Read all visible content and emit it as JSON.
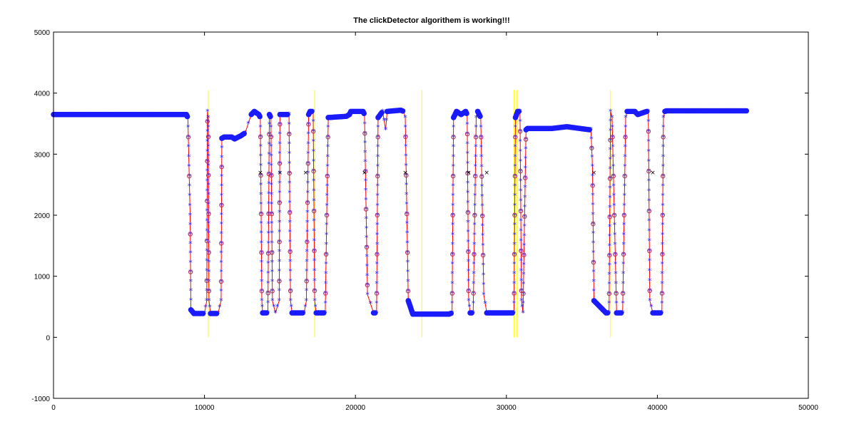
{
  "chart_data": {
    "type": "line",
    "title": "The clickDetector algorithem is working!!!",
    "xlabel": "",
    "ylabel": "",
    "xlim": [
      0,
      50000
    ],
    "ylim": [
      -1000,
      5000
    ],
    "xticks": [
      0,
      10000,
      20000,
      30000,
      40000,
      50000
    ],
    "xtick_labels": [
      "0",
      "10000",
      "20000",
      "30000",
      "40000",
      "50000"
    ],
    "yticks": [
      -1000,
      0,
      1000,
      2000,
      3000,
      4000,
      5000
    ],
    "ytick_labels": [
      "-1000",
      "0",
      "1000",
      "2000",
      "3000",
      "4000",
      "5000"
    ],
    "grid": false,
    "legend": "none",
    "colors": {
      "signal": "#1a1aff",
      "signal_line": "#ff0000",
      "transition_marker": "#b03a6a",
      "click_marker": "#000000",
      "click_line": "#ffff00",
      "axes": "#000000"
    },
    "series": [
      {
        "style": "blue markers with red line",
        "x": [
          0,
          8800,
          8900,
          9050,
          9100,
          9300,
          10000,
          10150,
          10200,
          10250,
          10300,
          10400,
          10600,
          10900,
          11100,
          11150,
          11300,
          11800,
          12000,
          12400,
          12700,
          13100,
          13300,
          13600,
          13700,
          13800,
          13850,
          14200,
          14300,
          14400,
          14500,
          14700,
          14950,
          15000,
          15100,
          15600,
          15700,
          15800,
          16000,
          16600,
          16750,
          16900,
          17000,
          17200,
          17300,
          17400,
          17800,
          18000,
          18200,
          19400,
          19600,
          19700,
          20000,
          20500,
          20600,
          20800,
          21200,
          21400,
          21500,
          21800,
          22000,
          22100,
          23000,
          23200,
          23300,
          23500,
          23800,
          24300,
          24400,
          24500,
          26200,
          26400,
          26500,
          26700,
          27000,
          27300,
          27400,
          27500,
          27600,
          27800,
          28000,
          28100,
          28300,
          28500,
          28700,
          28800,
          29000,
          30400,
          30500,
          30600,
          30750,
          30900,
          31000,
          31100,
          31300,
          31400,
          33000,
          34000,
          35500,
          35600,
          35700,
          35800,
          36600,
          36800,
          36900,
          37000,
          37300,
          37700,
          37900,
          38000,
          38100,
          38500,
          38700,
          39300,
          39400,
          39500,
          39700,
          40300,
          40400,
          40500,
          40600,
          41000,
          45900
        ],
        "y": [
          3650,
          3650,
          3600,
          2000,
          450,
          390,
          390,
          600,
          3700,
          3600,
          600,
          390,
          390,
          390,
          600,
          3260,
          3280,
          3280,
          3250,
          3300,
          3350,
          3650,
          3700,
          3650,
          3600,
          600,
          400,
          400,
          3650,
          3600,
          600,
          400,
          600,
          3650,
          3650,
          3650,
          600,
          400,
          400,
          400,
          600,
          3650,
          3700,
          3700,
          600,
          400,
          400,
          400,
          3600,
          3620,
          3650,
          3700,
          3700,
          3700,
          3650,
          700,
          400,
          400,
          3600,
          3700,
          3400,
          3700,
          3720,
          3700,
          3600,
          600,
          380,
          380,
          380,
          380,
          380,
          400,
          3600,
          3700,
          3650,
          3700,
          3650,
          600,
          400,
          400,
          3600,
          3700,
          3600,
          700,
          400,
          400,
          400,
          400,
          400,
          3600,
          3700,
          3700,
          600,
          400,
          3400,
          3420,
          3420,
          3450,
          3400,
          3400,
          2800,
          600,
          400,
          400,
          3700,
          3600,
          400,
          400,
          3600,
          3700,
          3700,
          3700,
          3650,
          3700,
          3700,
          600,
          400,
          400,
          3600,
          3700,
          3710,
          3710,
          3710
        ]
      },
      {
        "style": "click markers",
        "x": [
          13700,
          15000,
          16700,
          20600,
          23300,
          27500,
          28700,
          35800,
          39700
        ],
        "y": [
          2700,
          2700,
          2700,
          2700,
          2700,
          2700,
          2700,
          2700,
          2700
        ]
      }
    ],
    "vertical_lines": [
      10250,
      17300,
      24400,
      30500,
      30700,
      36900
    ],
    "vertical_line_range": [
      0,
      4050
    ]
  }
}
